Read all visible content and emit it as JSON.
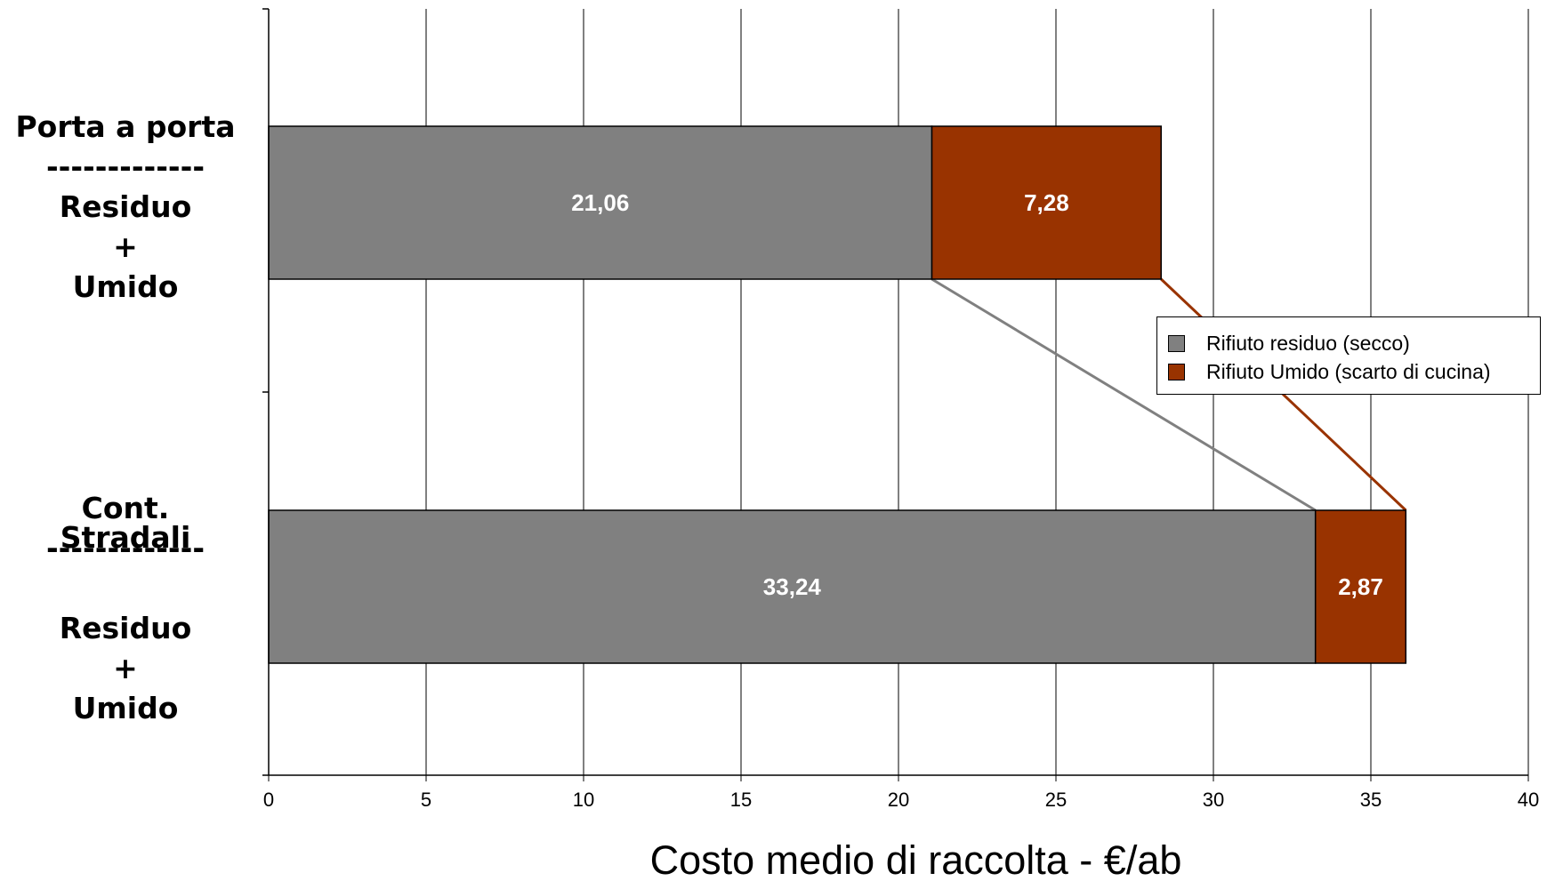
{
  "chart_data": {
    "type": "bar",
    "orientation": "horizontal",
    "stacked": true,
    "categories": [
      {
        "lines": [
          "Porta a porta",
          "-------------",
          "Residuo",
          "+",
          "Umido"
        ]
      },
      {
        "lines": [
          "Cont. Stradali",
          "-------------",
          "",
          "Residuo",
          "+",
          "Umido"
        ]
      }
    ],
    "series": [
      {
        "name": "Rifiuto residuo (secco)",
        "color": "#808080",
        "values": [
          21.06,
          33.24
        ],
        "labels": [
          "21,06",
          "33,24"
        ]
      },
      {
        "name": "Rifiuto Umido (scarto di cucina)",
        "color": "#993300",
        "values": [
          7.28,
          2.87
        ],
        "labels": [
          "7,28",
          "2,87"
        ]
      }
    ],
    "connector_lines": true,
    "xlim": [
      0,
      40
    ],
    "xticks": [
      0,
      5,
      10,
      15,
      20,
      25,
      30,
      35,
      40
    ],
    "xlabel": "Costo medio di raccolta - €/ab",
    "ylabel": "",
    "title": "",
    "grid": "vertical",
    "legend": "right"
  }
}
